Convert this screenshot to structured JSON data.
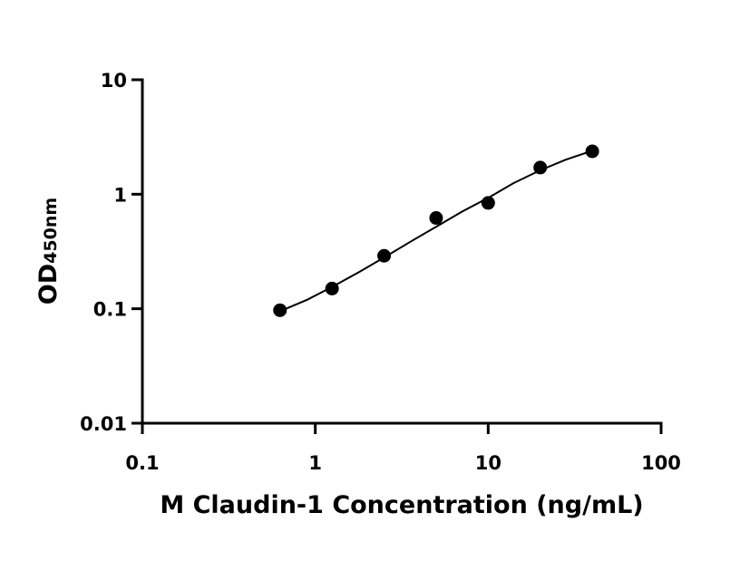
{
  "chart_data": {
    "type": "scatter",
    "x_label": "M Claudin-1 Concentration (ng/mL)",
    "y_label": "OD",
    "y_label_sub": "450nm",
    "x": [
      0.625,
      1.25,
      2.5,
      5,
      10,
      20,
      40
    ],
    "values": [
      0.097,
      0.15,
      0.29,
      0.62,
      0.84,
      1.71,
      2.37
    ],
    "color": "#000000",
    "fit": {
      "x": [
        0.625,
        0.9,
        1.25,
        1.8,
        2.5,
        3.5,
        5,
        7,
        10,
        14,
        20,
        28,
        40
      ],
      "values": [
        0.095,
        0.12,
        0.155,
        0.21,
        0.28,
        0.38,
        0.52,
        0.7,
        0.93,
        1.25,
        1.62,
        2.0,
        2.4
      ]
    },
    "xscale": "log",
    "yscale": "log",
    "xlim": [
      0.1,
      100
    ],
    "xticks": [
      0.1,
      1,
      10,
      100
    ],
    "ylim": [
      0.01,
      10
    ],
    "yticks": [
      0.01,
      0.1,
      1,
      10
    ]
  }
}
